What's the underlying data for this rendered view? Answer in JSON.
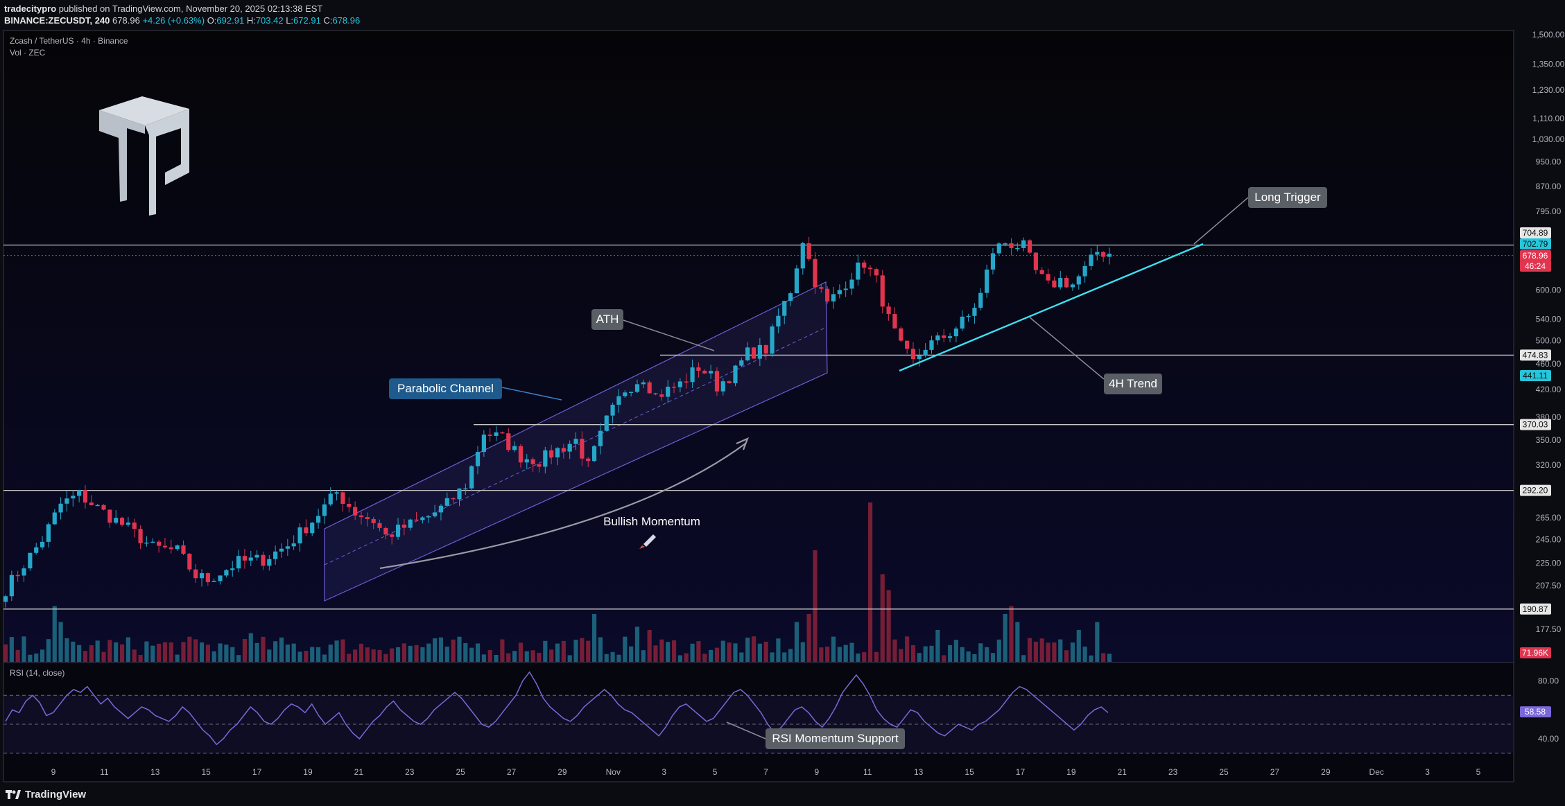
{
  "header": {
    "author": "tradecitypro",
    "published": "published on TradingView.com, November 20, 2025 02:13:38 EST",
    "symbol": "BINANCE:ZECUSDT, 240",
    "last": "678.96",
    "change": "+4.26 (+0.63%)",
    "o_label": "O:",
    "o_val": "692.91",
    "h_label": "H:",
    "h_val": "703.42",
    "l_label": "L:",
    "l_val": "672.91",
    "c_label": "C:",
    "c_val": "678.96"
  },
  "legend": {
    "title": "Zcash / TetherUS · 4h · Binance",
    "vol": "Vol · ZEC",
    "rsi": "RSI (14, close)"
  },
  "footer": {
    "brand": "TradingView"
  },
  "colors": {
    "bull": "#26a7c9",
    "bear": "#e0344f",
    "channel": "#6d5fd6",
    "trendline": "#3fe0f0",
    "rsi_line": "#7b68d8",
    "level": "#c8c8c8",
    "background": "#0b0b12"
  },
  "chart_data": [
    {
      "type": "candlestick",
      "scale": "log",
      "ylim": [
        180,
        1500
      ],
      "y_ticks": [
        "1,500.00",
        "1,350.00",
        "1,230.00",
        "1,110.00",
        "1,030.00",
        "950.00",
        "870.00",
        "795.00",
        "600.00",
        "540.00",
        "500.00",
        "460.00",
        "420.00",
        "380.00",
        "350.00",
        "320.00",
        "265.00",
        "245.00",
        "225.00",
        "207.50",
        "177.50"
      ],
      "y_tick_values": [
        1500,
        1350,
        1230,
        1110,
        1030,
        950,
        870,
        795,
        600,
        540,
        500,
        460,
        420,
        380,
        350,
        320,
        265,
        245,
        225,
        207.5,
        177.5
      ],
      "x_ticks": [
        "9",
        "11",
        "13",
        "15",
        "17",
        "19",
        "21",
        "23",
        "25",
        "27",
        "29",
        "Nov",
        "3",
        "5",
        "7",
        "9",
        "11",
        "13",
        "15",
        "17",
        "19",
        "21",
        "23",
        "25",
        "27",
        "29",
        "Dec",
        "3",
        "5"
      ],
      "price_path": [
        [
          0,
          205
        ],
        [
          6,
          245
        ],
        [
          9,
          278
        ],
        [
          12,
          288
        ],
        [
          16,
          270
        ],
        [
          20,
          255
        ],
        [
          24,
          238
        ],
        [
          28,
          235
        ],
        [
          31,
          215
        ],
        [
          33,
          212
        ],
        [
          38,
          226
        ],
        [
          42,
          228
        ],
        [
          46,
          240
        ],
        [
          50,
          262
        ],
        [
          54,
          290
        ],
        [
          57,
          270
        ],
        [
          60,
          262
        ],
        [
          62,
          248
        ],
        [
          65,
          256
        ],
        [
          69,
          266
        ],
        [
          72,
          278
        ],
        [
          75,
          298
        ],
        [
          78,
          360
        ],
        [
          81,
          352
        ],
        [
          84,
          330
        ],
        [
          87,
          325
        ],
        [
          90,
          338
        ],
        [
          93,
          350
        ],
        [
          95,
          318
        ],
        [
          98,
          375
        ],
        [
          101,
          420
        ],
        [
          104,
          440
        ],
        [
          106,
          410
        ],
        [
          110,
          428
        ],
        [
          113,
          455
        ],
        [
          115,
          440
        ],
        [
          116,
          425
        ],
        [
          119,
          448
        ],
        [
          121,
          478
        ],
        [
          124,
          485
        ],
        [
          126,
          545
        ],
        [
          128,
          600
        ],
        [
          130,
          720
        ],
        [
          132,
          620
        ],
        [
          134,
          570
        ],
        [
          136,
          600
        ],
        [
          138,
          635
        ],
        [
          140,
          662
        ],
        [
          142,
          620
        ],
        [
          144,
          540
        ],
        [
          146,
          488
        ],
        [
          148,
          462
        ],
        [
          150,
          490
        ],
        [
          152,
          500
        ],
        [
          154,
          515
        ],
        [
          157,
          545
        ],
        [
          159,
          590
        ],
        [
          161,
          690
        ],
        [
          163,
          712
        ],
        [
          166,
          700
        ],
        [
          168,
          640
        ],
        [
          170,
          608
        ],
        [
          172,
          622
        ],
        [
          174,
          612
        ],
        [
          176,
          645
        ],
        [
          178,
          688
        ],
        [
          180,
          685
        ]
      ],
      "volume_scale": "71.96K",
      "volume_spikes": [
        [
          8,
          0.35
        ],
        [
          9,
          0.25
        ],
        [
          40,
          0.18
        ],
        [
          96,
          0.3
        ],
        [
          103,
          0.22
        ],
        [
          105,
          0.2
        ],
        [
          129,
          0.25
        ],
        [
          131,
          0.3
        ],
        [
          132,
          0.7
        ],
        [
          141,
          1.0
        ],
        [
          143,
          0.55
        ],
        [
          144,
          0.45
        ],
        [
          152,
          0.2
        ],
        [
          163,
          0.3
        ],
        [
          164,
          0.35
        ],
        [
          165,
          0.25
        ],
        [
          175,
          0.2
        ],
        [
          178,
          0.25
        ]
      ],
      "levels": [
        {
          "label": "190.87",
          "value": 190.87
        },
        {
          "label": "292.20",
          "value": 292.2
        },
        {
          "label": "370.03",
          "value": 370.03
        },
        {
          "label": "474.83",
          "value": 474.83
        },
        {
          "label": "704.89",
          "value": 704.89
        }
      ],
      "price_tags": [
        {
          "label": "704.89",
          "value": 712,
          "kind": "level"
        },
        {
          "label": "702.79",
          "value": 700,
          "kind": "cyan"
        },
        {
          "label": "678.96",
          "value": 678.96,
          "kind": "red"
        },
        {
          "label": "46:24",
          "value": 662,
          "kind": "red"
        },
        {
          "label": "474.83",
          "value": 474.83,
          "kind": "level"
        },
        {
          "label": "441.11",
          "value": 441.11,
          "kind": "cyan"
        },
        {
          "label": "370.03",
          "value": 370.03,
          "kind": "level"
        },
        {
          "label": "292.20",
          "value": 292.2,
          "kind": "level"
        },
        {
          "label": "190.87",
          "value": 190.87,
          "kind": "level"
        }
      ],
      "volume_tag": "71.96K",
      "annotations": [
        {
          "text": "Long Trigger"
        },
        {
          "text": "ATH"
        },
        {
          "text": "Parabolic Channel"
        },
        {
          "text": "4H Trend"
        },
        {
          "text": "Bullish Momentum"
        },
        {
          "text": "RSI Momentum Support"
        }
      ]
    },
    {
      "type": "line",
      "name": "RSI (14, close)",
      "ylim": [
        20,
        90
      ],
      "y_ticks": [
        "80.00",
        "40.00"
      ],
      "y_tick_values": [
        80,
        40
      ],
      "bands": [
        70,
        50,
        30
      ],
      "last_value": "58.58",
      "values": [
        52,
        60,
        58,
        66,
        70,
        65,
        56,
        58,
        64,
        70,
        74,
        72,
        76,
        70,
        64,
        68,
        62,
        58,
        54,
        58,
        62,
        60,
        56,
        54,
        52,
        56,
        62,
        58,
        52,
        46,
        42,
        36,
        40,
        46,
        50,
        56,
        62,
        58,
        52,
        50,
        54,
        60,
        64,
        62,
        58,
        64,
        56,
        50,
        54,
        58,
        50,
        44,
        40,
        46,
        52,
        56,
        62,
        66,
        60,
        56,
        52,
        50,
        54,
        60,
        64,
        68,
        72,
        68,
        62,
        56,
        50,
        48,
        52,
        58,
        64,
        70,
        80,
        86,
        78,
        68,
        62,
        58,
        54,
        52,
        56,
        62,
        66,
        70,
        74,
        70,
        64,
        60,
        58,
        54,
        50,
        46,
        42,
        48,
        56,
        62,
        64,
        60,
        56,
        52,
        54,
        60,
        66,
        72,
        74,
        70,
        64,
        58,
        50,
        44,
        48,
        54,
        60,
        62,
        58,
        52,
        48,
        54,
        62,
        72,
        78,
        84,
        78,
        70,
        60,
        54,
        50,
        48,
        54,
        60,
        58,
        52,
        48,
        44,
        42,
        46,
        50,
        48,
        46,
        50,
        52,
        56,
        60,
        66,
        72,
        76,
        74,
        70,
        66,
        62,
        58,
        54,
        50,
        46,
        50,
        56,
        60,
        62,
        58
      ]
    }
  ]
}
